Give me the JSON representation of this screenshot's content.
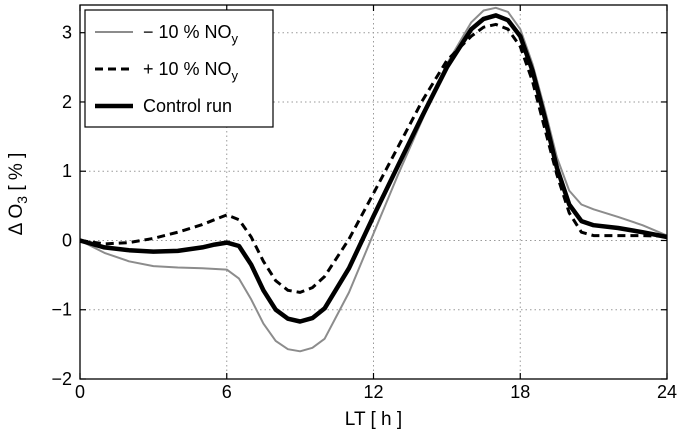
{
  "chart_data": {
    "type": "line",
    "xlabel": "LT [ h ]",
    "ylabel_main": "Δ O",
    "ylabel_sub": "3",
    "ylabel_unit": " [ % ]",
    "xlim": [
      0,
      24
    ],
    "ylim": [
      -2,
      3.4
    ],
    "xticks": [
      0,
      6,
      12,
      18,
      24
    ],
    "yticks": [
      -2,
      -1,
      0,
      1,
      2,
      3
    ],
    "grid": true,
    "legend_position": "top-left",
    "series": [
      {
        "name": "− 10 % NO",
        "name_sub": "y",
        "color": "#8c8c8c",
        "style": "solid",
        "width": 2,
        "x": [
          0,
          1,
          2,
          3,
          4,
          5,
          6,
          6.5,
          7,
          7.5,
          8,
          8.5,
          9,
          9.5,
          10,
          11,
          12,
          13,
          14,
          15,
          16,
          16.5,
          17,
          17.5,
          18,
          18.5,
          19,
          19.5,
          20,
          20.5,
          21,
          22,
          23,
          24
        ],
        "y": [
          0,
          -0.18,
          -0.3,
          -0.37,
          -0.39,
          -0.4,
          -0.42,
          -0.55,
          -0.85,
          -1.2,
          -1.45,
          -1.57,
          -1.6,
          -1.55,
          -1.42,
          -0.75,
          0.1,
          0.95,
          1.75,
          2.55,
          3.15,
          3.32,
          3.36,
          3.3,
          3.05,
          2.55,
          1.9,
          1.2,
          0.72,
          0.52,
          0.45,
          0.34,
          0.22,
          0.07
        ]
      },
      {
        "name": "+ 10 % NO",
        "name_sub": "y",
        "color": "#000000",
        "style": "dashed",
        "width": 3,
        "x": [
          0,
          1,
          2,
          3,
          4,
          5,
          5.5,
          6,
          6.5,
          7,
          7.5,
          8,
          8.5,
          9,
          9.5,
          10,
          11,
          12,
          13,
          14,
          15,
          16,
          16.5,
          17,
          17.5,
          18,
          18.5,
          19,
          19.5,
          20,
          20.5,
          21,
          22,
          23,
          24
        ],
        "y": [
          0,
          -0.05,
          -0.03,
          0.03,
          0.12,
          0.23,
          0.3,
          0.37,
          0.3,
          0.05,
          -0.3,
          -0.58,
          -0.72,
          -0.75,
          -0.68,
          -0.52,
          0.02,
          0.68,
          1.35,
          2.02,
          2.6,
          2.95,
          3.08,
          3.12,
          3.05,
          2.8,
          2.3,
          1.62,
          0.95,
          0.4,
          0.12,
          0.07,
          0.07,
          0.07,
          0.06
        ]
      },
      {
        "name": "Control run",
        "name_sub": "",
        "color": "#000000",
        "style": "solid",
        "width": 4.5,
        "x": [
          0,
          1,
          2,
          3,
          4,
          5,
          5.5,
          6,
          6.5,
          7,
          7.5,
          8,
          8.5,
          9,
          9.5,
          10,
          11,
          12,
          13,
          14,
          15,
          16,
          16.5,
          17,
          17.5,
          18,
          18.5,
          19,
          19.5,
          20,
          20.5,
          21,
          22,
          23,
          24
        ],
        "y": [
          0,
          -0.1,
          -0.14,
          -0.16,
          -0.15,
          -0.1,
          -0.06,
          -0.03,
          -0.08,
          -0.35,
          -0.72,
          -1.0,
          -1.13,
          -1.17,
          -1.12,
          -0.98,
          -0.4,
          0.35,
          1.08,
          1.8,
          2.5,
          3.05,
          3.2,
          3.25,
          3.18,
          2.95,
          2.45,
          1.78,
          1.05,
          0.52,
          0.28,
          0.22,
          0.18,
          0.12,
          0.05
        ]
      }
    ]
  }
}
